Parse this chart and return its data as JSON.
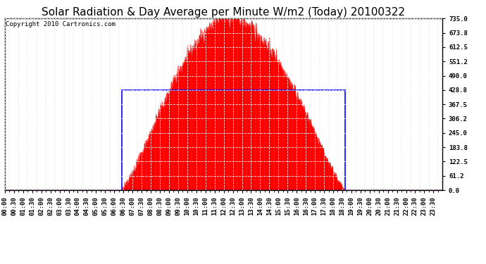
{
  "title": "Solar Radiation & Day Average per Minute W/m2 (Today) 20100322",
  "copyright": "Copyright 2010 Cartronics.com",
  "ylim": [
    0,
    735.0
  ],
  "yticks": [
    0.0,
    61.2,
    122.5,
    183.8,
    245.0,
    306.2,
    367.5,
    428.8,
    490.0,
    551.2,
    612.5,
    673.8,
    735.0
  ],
  "ytick_labels": [
    "0.0",
    "61.2",
    "122.5",
    "183.8",
    "245.0",
    "306.2",
    "367.5",
    "428.8",
    "490.0",
    "551.2",
    "612.5",
    "673.8",
    "735.0"
  ],
  "day_average": 428.8,
  "sunrise_minute": 385,
  "sunset_minute": 1120,
  "peak_minute": 740,
  "peak_value": 735.0,
  "fill_color": "#FF0000",
  "line_color": "#0000FF",
  "background_color": "#FFFFFF",
  "grid_color": "#AAAAAA",
  "title_fontsize": 11,
  "copyright_fontsize": 6.5,
  "tick_fontsize": 6.5,
  "xtick_interval": 30
}
